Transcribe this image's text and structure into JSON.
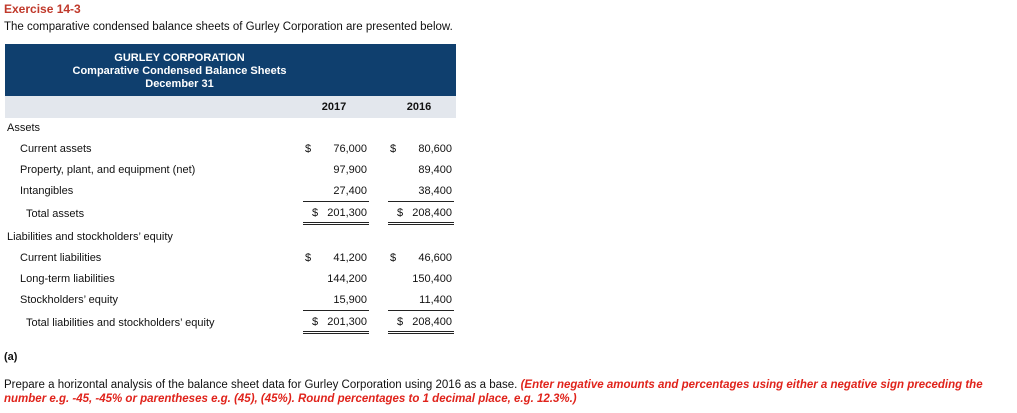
{
  "exercise_title": "Exercise 14-3",
  "intro": "The comparative condensed balance sheets of Gurley Corporation are presented below.",
  "header": {
    "company": "GURLEY CORPORATION",
    "statement": "Comparative Condensed Balance Sheets",
    "date": "December 31"
  },
  "columns": [
    "2017",
    "2016"
  ],
  "sections": {
    "assets": "Assets",
    "liabilities": "Liabilities and stockholders’ equity"
  },
  "rows": {
    "current_assets": {
      "label": "Current assets",
      "y2017": "76,000",
      "y2016": "80,600",
      "cur": "$"
    },
    "ppe": {
      "label": "Property, plant, and equipment (net)",
      "y2017": "97,900",
      "y2016": "89,400"
    },
    "intangibles": {
      "label": "Intangibles",
      "y2017": "27,400",
      "y2016": "38,400"
    },
    "total_assets": {
      "label": "Total assets",
      "y2017": "201,300",
      "y2016": "208,400",
      "cur": "$"
    },
    "current_liabilities": {
      "label": "Current liabilities",
      "y2017": "41,200",
      "y2016": "46,600",
      "cur": "$"
    },
    "long_term_liabilities": {
      "label": "Long-term liabilities",
      "y2017": "144,200",
      "y2016": "150,400"
    },
    "stockholders_equity": {
      "label": "Stockholders’ equity",
      "y2017": "15,900",
      "y2016": "11,400"
    },
    "total_liab_equity": {
      "label": "Total liabilities and stockholders’ equity",
      "y2017": "201,300",
      "y2016": "208,400",
      "cur": "$"
    }
  },
  "part_label": "(a)",
  "instructions": {
    "text": "Prepare a horizontal analysis of the balance sheet data for Gurley Corporation using 2016 as a base.",
    "note": "(Enter negative amounts and percentages using either a negative sign preceding the number e.g. -45, -45% or parentheses e.g. (45), (45%). Round percentages to 1 decimal place, e.g. 12.3%.)"
  },
  "colors": {
    "title_red": "#c0392b",
    "header_bg": "#0f3f6e",
    "note_red": "#e0231b",
    "colhead_bg": "#e3e7ed"
  }
}
